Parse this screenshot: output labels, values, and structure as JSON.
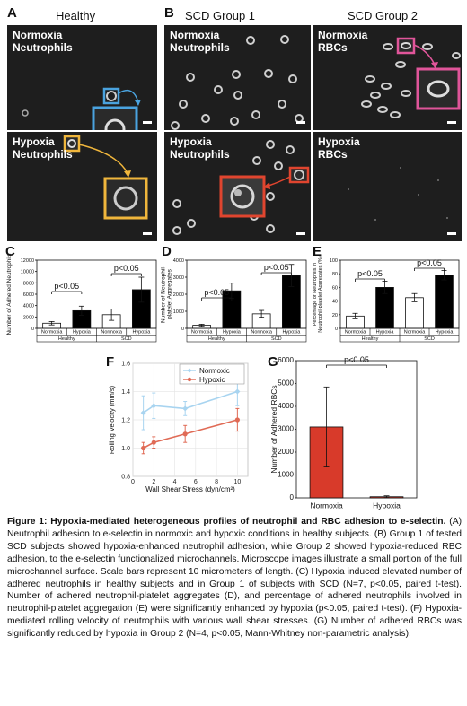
{
  "panel_labels": {
    "A": "A",
    "B": "B",
    "C": "C",
    "D": "D",
    "E": "E",
    "F": "F",
    "G": "G"
  },
  "column_titles": {
    "healthy": "Healthy",
    "scd1": "SCD  Group 1",
    "scd2": "SCD  Group 2"
  },
  "micrographs": {
    "a_top": "Normoxia\nNeutrophils",
    "a_bottom": "Hypoxia\nNeutrophils",
    "b_top": "Normoxia\nNeutrophils",
    "b_bottom": "Hypoxia\nNeutrophils",
    "c_top": "Normoxia\nRBCs",
    "c_bottom": "Hypoxia\nRBCs"
  },
  "colors": {
    "blue": "#4aa3df",
    "yellow": "#f0b63c",
    "red": "#e0452f",
    "pink": "#e0559a",
    "normoxic_line": "#a8d4f0",
    "hypoxic_line": "#e06a55",
    "bar_red": "#d83a2a"
  },
  "chart_data": [
    {
      "id": "C",
      "type": "bar",
      "ylabel": "Number of Adhered Neutrophils",
      "ylim": [
        0,
        12000
      ],
      "yticks": [
        "0",
        "2000",
        "4000",
        "6000",
        "8000",
        "10000",
        "12000"
      ],
      "categories": [
        "Normoxia",
        "Hypoxia",
        "Normoxia",
        "Hypoxia"
      ],
      "groups": [
        "Healthy",
        "SCD"
      ],
      "values": [
        900,
        3100,
        2400,
        6800
      ],
      "errors": [
        300,
        800,
        1000,
        2200
      ],
      "fills": [
        "white",
        "black",
        "white",
        "black"
      ],
      "annotations": [
        "p<0.05",
        "p<0.05"
      ]
    },
    {
      "id": "D",
      "type": "bar",
      "ylabel": "Number of Neutrophil-\nplatelet Aggregates",
      "ylim": [
        0,
        4000
      ],
      "yticks": [
        "0",
        "1000",
        "2000",
        "3000",
        "4000"
      ],
      "categories": [
        "Normoxia",
        "Hypoxia",
        "Normoxia",
        "Hypoxia"
      ],
      "groups": [
        "Healthy",
        "SCD"
      ],
      "values": [
        180,
        2200,
        850,
        3100
      ],
      "errors": [
        60,
        450,
        200,
        650
      ],
      "fills": [
        "white",
        "black",
        "white",
        "black"
      ],
      "annotations": [
        "p<0.05",
        "p<0.05"
      ]
    },
    {
      "id": "E",
      "type": "bar",
      "ylabel": "Percentage of Neutrophils in\nNeutrophil-platelet Aggregates (%)",
      "ylim": [
        0,
        100
      ],
      "yticks": [
        "0",
        "20",
        "40",
        "60",
        "80",
        "100"
      ],
      "categories": [
        "Normoxia",
        "Hypoxia",
        "Normoxia",
        "Hypoxia"
      ],
      "groups": [
        "Healthy",
        "SCD"
      ],
      "values": [
        18,
        60,
        45,
        78
      ],
      "errors": [
        4,
        9,
        6,
        7
      ],
      "fills": [
        "white",
        "black",
        "white",
        "black"
      ],
      "annotations": [
        "p<0.05",
        "p<0.05"
      ]
    },
    {
      "id": "F",
      "type": "line",
      "xlabel": "Wall Shear Stress (dyn/cm²)",
      "ylabel": "Rolling Velocity (mm/s)",
      "xlim": [
        0,
        11
      ],
      "ylim": [
        0.8,
        1.6
      ],
      "xticks": [
        "0",
        "2",
        "4",
        "6",
        "8",
        "10"
      ],
      "yticks": [
        "0.8",
        "1.0",
        "1.2",
        "1.4",
        "1.6"
      ],
      "x": [
        1,
        2,
        5,
        10
      ],
      "series": [
        {
          "name": "Normoxic",
          "values": [
            1.25,
            1.3,
            1.28,
            1.4
          ],
          "errors": [
            0.12,
            0.09,
            0.05,
            0.1
          ]
        },
        {
          "name": "Hypoxic",
          "values": [
            1.0,
            1.04,
            1.1,
            1.2
          ],
          "errors": [
            0.04,
            0.04,
            0.06,
            0.08
          ]
        }
      ],
      "legend": "top-right"
    },
    {
      "id": "G",
      "type": "bar",
      "ylabel": "Number of Adhered RBCs",
      "ylim": [
        0,
        6000
      ],
      "yticks": [
        "0",
        "1000",
        "2000",
        "3000",
        "4000",
        "5000",
        "6000"
      ],
      "categories": [
        "Normoxia",
        "Hypoxia"
      ],
      "values": [
        3100,
        50
      ],
      "errors": [
        1750,
        40
      ],
      "annotations": [
        "p<0.05"
      ]
    }
  ],
  "caption": {
    "title": "Figure 1: Hypoxia-mediated heterogeneous profiles of neutrophil and RBC adhesion to e-selectin.",
    "body": " (A) Neutrophil adhesion to e-selectin in normoxic and hypoxic conditions in healthy subjects. (B) Group 1 of tested SCD subjects showed hypoxia-enhanced neutrophil adhesion, while Group 2 showed hypoxia-reduced RBC adhesion, to the e-selectin functionalized microchannels. Microscope images illustrate a small portion of the full microchannel surface. Scale bars represent 10 micrometers of length. (C) Hypoxia induced elevated number of adhered neutrophils in healthy subjects and in Group 1 of subjects with SCD (N=7, p<0.05, paired t-test). Number of adhered neutrophil-platelet aggregates (D), and percentage of adhered neutrophils involved in neutrophil-platelet aggregation (E) were significantly enhanced by hypoxia (p<0.05, paired t-test). (F) Hypoxia-mediated rolling velocity of neutrophils with various wall shear stresses. (G) Number of adhered RBCs was significantly reduced by hypoxia in Group 2 (N=4, p<0.05, Mann-Whitney non-parametric analysis)."
  }
}
